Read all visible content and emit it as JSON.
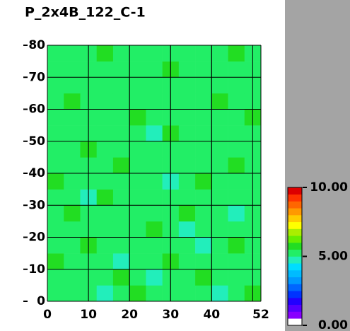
{
  "chart_data": {
    "type": "heatmap",
    "title": "P_2x4B_122_C-1",
    "x_bins": [
      0,
      4,
      8,
      12,
      16,
      20,
      24,
      28,
      32,
      36,
      40,
      44,
      48,
      52
    ],
    "y_bins": [
      0,
      5,
      10,
      15,
      20,
      25,
      30,
      35,
      40,
      45,
      50,
      55,
      60,
      65,
      70,
      75,
      80
    ],
    "values": [
      [
        5.3,
        5.1,
        5.4,
        4.9,
        5.2,
        5.5,
        5.3,
        5.0,
        5.4,
        5.2,
        4.9,
        5.3,
        5.5
      ],
      [
        5.2,
        5.4,
        5.0,
        5.3,
        5.5,
        5.1,
        4.8,
        5.3,
        5.2,
        5.5,
        5.1,
        5.0,
        5.3
      ],
      [
        5.5,
        5.2,
        5.3,
        5.1,
        4.9,
        5.4,
        5.2,
        5.5,
        5.0,
        5.3,
        5.4,
        5.2,
        5.1
      ],
      [
        5.1,
        5.3,
        5.5,
        5.2,
        5.3,
        5.0,
        5.4,
        5.1,
        5.3,
        4.9,
        5.2,
        5.5,
        5.3
      ],
      [
        5.4,
        5.0,
        5.2,
        5.4,
        5.1,
        5.3,
        5.5,
        5.2,
        4.8,
        5.3,
        5.1,
        5.3,
        5.2
      ],
      [
        5.2,
        5.5,
        5.1,
        5.3,
        5.4,
        5.2,
        5.0,
        5.3,
        5.5,
        5.1,
        5.4,
        4.9,
        5.3
      ],
      [
        5.3,
        5.2,
        4.9,
        5.5,
        5.2,
        5.1,
        5.3,
        5.4,
        5.2,
        5.3,
        5.0,
        5.2,
        5.4
      ],
      [
        5.5,
        5.3,
        5.2,
        5.0,
        5.3,
        5.4,
        5.2,
        4.9,
        5.3,
        5.5,
        5.2,
        5.3,
        5.1
      ],
      [
        5.1,
        5.4,
        5.3,
        5.2,
        5.5,
        5.0,
        5.3,
        5.2,
        5.4,
        5.1,
        5.3,
        5.5,
        5.2
      ],
      [
        5.3,
        5.1,
        5.5,
        5.3,
        5.0,
        5.2,
        5.4,
        5.3,
        5.1,
        5.2,
        5.4,
        5.0,
        5.3
      ],
      [
        5.2,
        5.3,
        5.1,
        5.4,
        5.2,
        5.3,
        4.9,
        5.5,
        5.2,
        5.3,
        5.1,
        5.4,
        5.2
      ],
      [
        5.4,
        5.2,
        5.3,
        5.0,
        5.3,
        5.5,
        5.2,
        5.1,
        5.3,
        5.4,
        5.2,
        5.3,
        5.5
      ],
      [
        5.1,
        5.5,
        5.2,
        5.3,
        5.1,
        5.2,
        5.4,
        5.3,
        5.0,
        5.2,
        5.5,
        5.1,
        5.3
      ],
      [
        5.3,
        5.2,
        5.4,
        5.2,
        5.4,
        5.1,
        5.3,
        5.2,
        5.4,
        5.3,
        5.0,
        5.3,
        5.2
      ],
      [
        5.2,
        5.4,
        5.1,
        5.3,
        5.2,
        5.4,
        5.1,
        5.5,
        5.2,
        5.1,
        5.3,
        5.2,
        5.4
      ],
      [
        5.4,
        5.1,
        5.3,
        5.5,
        5.0,
        5.3,
        5.2,
        5.3,
        5.4,
        5.2,
        5.3,
        5.5,
        5.1
      ]
    ],
    "xlim": [
      0,
      52
    ],
    "xticks": [
      0,
      10,
      20,
      30,
      40,
      52
    ],
    "x_grid": [
      10,
      20,
      30,
      40,
      50
    ],
    "ylim": [
      0,
      80
    ],
    "yticks": [
      0,
      10,
      20,
      30,
      40,
      50,
      60,
      70,
      80
    ],
    "colorbar": {
      "lim": [
        0,
        10
      ],
      "ticks": [
        {
          "value": 0,
          "label": "0.00"
        },
        {
          "value": 5,
          "label": "5.00"
        },
        {
          "value": 10,
          "label": "10.00"
        }
      ],
      "colors": [
        "#ffffff",
        "#8800ff",
        "#5500ff",
        "#2200ff",
        "#0033ff",
        "#0066ff",
        "#0099ff",
        "#00bbff",
        "#00ddff",
        "#22eebb",
        "#22ee66",
        "#22dd22",
        "#66ee00",
        "#aaee00",
        "#ffff00",
        "#ffcc00",
        "#ff9900",
        "#ff6600",
        "#ff3300",
        "#dd0000"
      ]
    }
  }
}
